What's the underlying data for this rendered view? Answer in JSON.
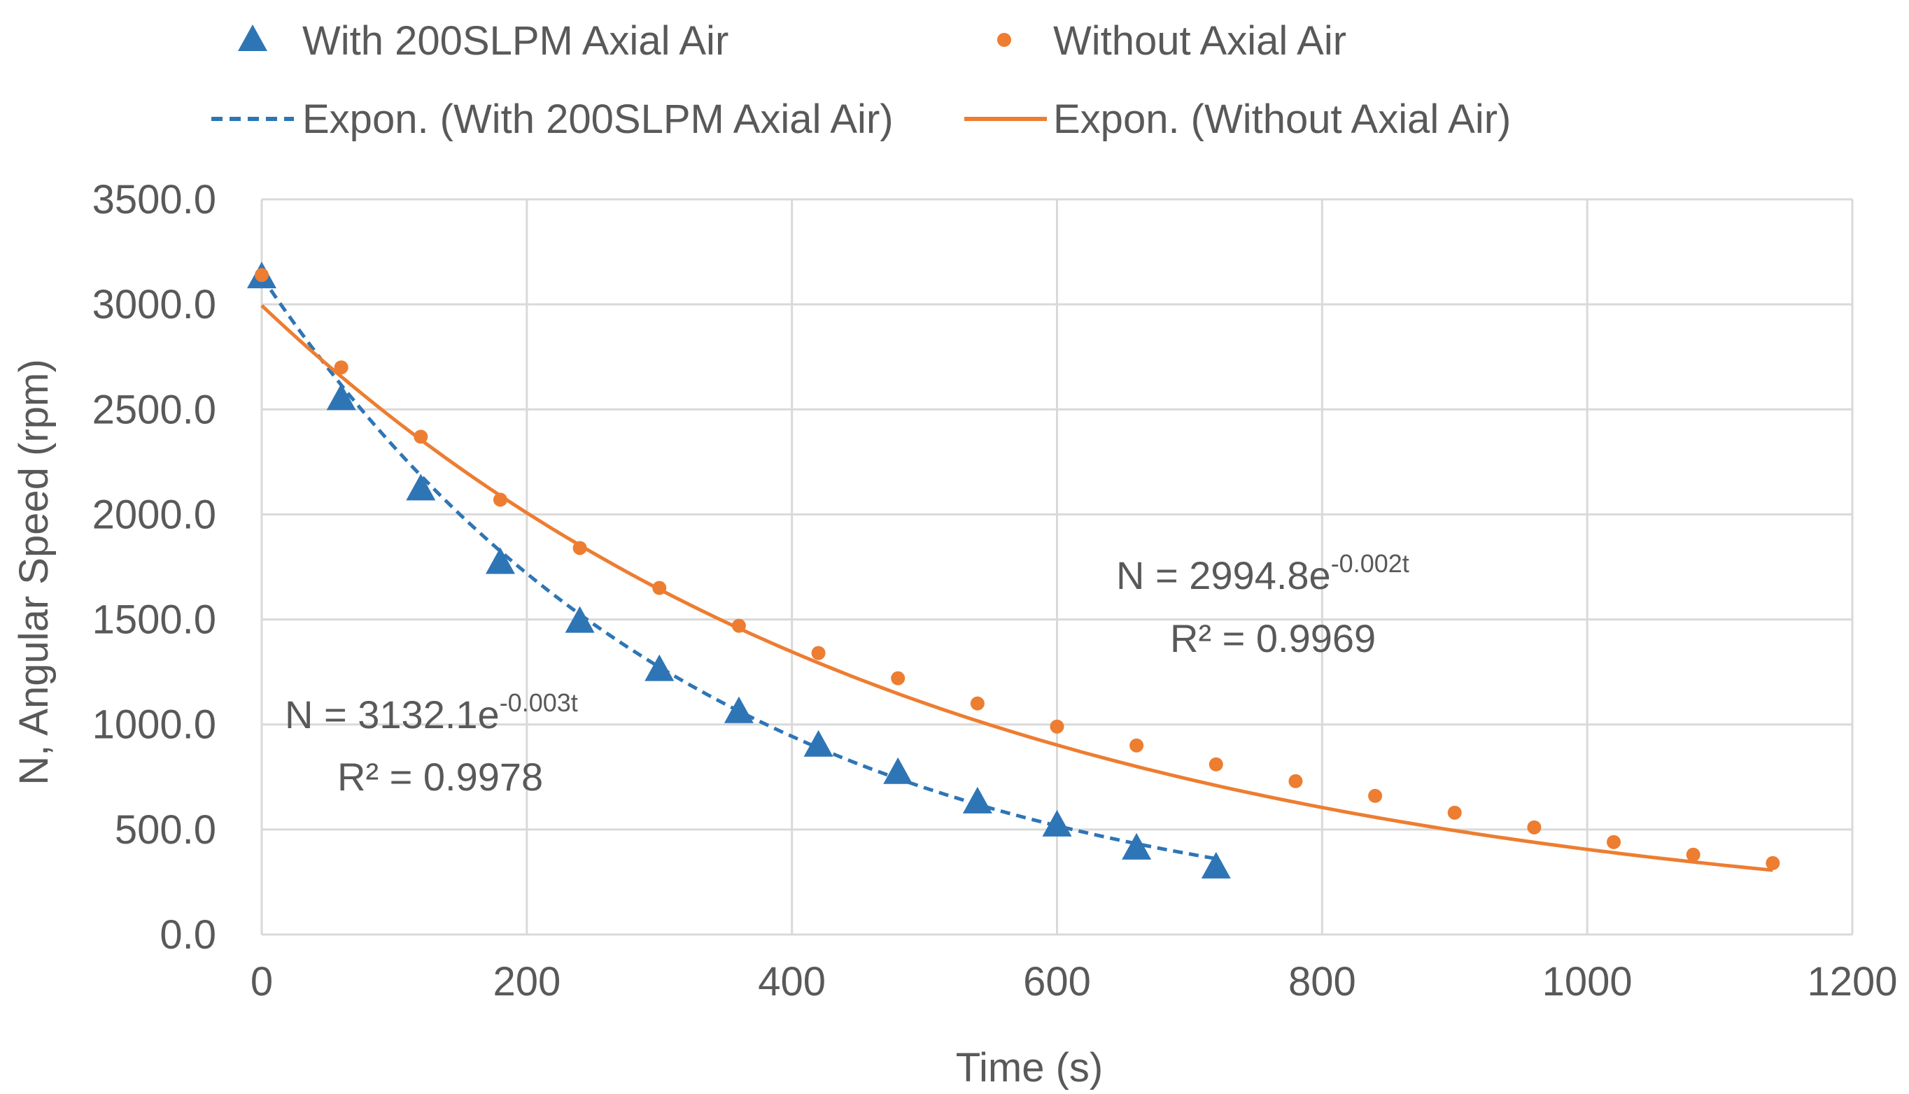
{
  "chart_data": {
    "type": "scatter",
    "title": "",
    "xlabel": "Time (s)",
    "ylabel": "N, Angular Speed (rpm)",
    "xlim": [
      0,
      1200
    ],
    "ylim": [
      0,
      3500
    ],
    "grid": true,
    "legend_position": "top",
    "x_ticks": [
      "0",
      "200",
      "400",
      "600",
      "800",
      "1000",
      "1200"
    ],
    "y_ticks": [
      "0.0",
      "500.0",
      "1000.0",
      "1500.0",
      "2000.0",
      "2500.0",
      "3000.0",
      "3500.0"
    ],
    "series": [
      {
        "name": "With 200SLPM Axial Air",
        "marker": "triangle",
        "color": "#2E75B6",
        "x": [
          0,
          60,
          120,
          180,
          240,
          300,
          360,
          420,
          480,
          540,
          600,
          660,
          720
        ],
        "y": [
          3140,
          2560,
          2130,
          1780,
          1500,
          1270,
          1070,
          910,
          780,
          640,
          530,
          420,
          330
        ]
      },
      {
        "name": "Without Axial Air",
        "marker": "circle",
        "color": "#ED7D31",
        "x": [
          0,
          60,
          120,
          180,
          240,
          300,
          360,
          420,
          480,
          540,
          600,
          660,
          720,
          780,
          840,
          900,
          960,
          1020,
          1080,
          1140
        ],
        "y": [
          3140,
          2700,
          2370,
          2070,
          1840,
          1650,
          1470,
          1340,
          1220,
          1100,
          990,
          900,
          810,
          730,
          660,
          580,
          510,
          440,
          380,
          340
        ]
      }
    ],
    "trendlines": [
      {
        "name": "Expon. (With 200SLPM Axial Air)",
        "style": "dashed",
        "color": "#2E75B6",
        "a": 3132.1,
        "b": -0.003,
        "x_range": [
          0,
          720
        ],
        "eq_prefix": "N = 3132.1e",
        "eq_exp": "-0.003t",
        "r2": "R² = 0.9978"
      },
      {
        "name": "Expon. (Without Axial Air)",
        "style": "solid",
        "color": "#ED7D31",
        "a": 2994.8,
        "b": -0.002,
        "x_range": [
          0,
          1140
        ],
        "eq_prefix": "N = 2994.8e",
        "eq_exp": "-0.002t",
        "r2": "R² = 0.9969"
      }
    ]
  }
}
